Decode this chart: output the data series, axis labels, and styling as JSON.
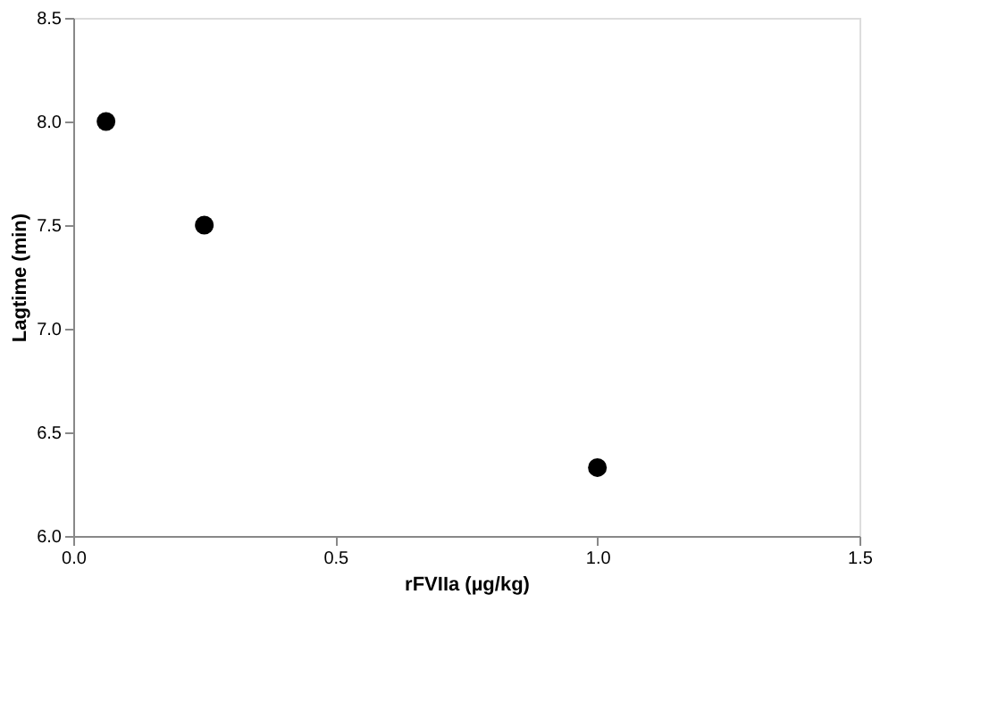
{
  "chart_data": {
    "type": "scatter",
    "xlabel": "rFVIIa (µg/kg)",
    "ylabel": "Lagtime (min)",
    "x": [
      0.0625,
      0.25,
      1.0
    ],
    "series": [
      {
        "color": "#000000",
        "values": [
          8.0,
          7.5,
          6.33
        ]
      }
    ],
    "xlim": [
      0,
      1.5
    ],
    "xticks": [
      {
        "value": 0,
        "label": "0.0"
      },
      0.5,
      {
        "value": 1,
        "label": "1.0"
      },
      1.5
    ],
    "ylim": [
      6,
      8.5
    ],
    "yticks": [
      {
        "value": 6,
        "label": "6.0"
      },
      6.5,
      {
        "value": 7,
        "label": "7.0"
      },
      7.5,
      {
        "value": 8,
        "label": "8.0"
      },
      8.5
    ],
    "marker": "circle",
    "grid": false
  }
}
